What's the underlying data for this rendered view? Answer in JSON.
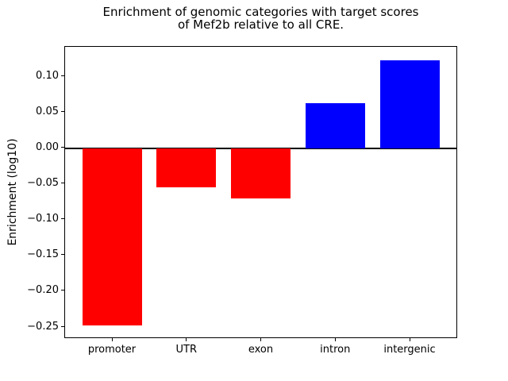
{
  "figure": {
    "background_color": "#ffffff",
    "text_color": "#000000"
  },
  "chart_data": {
    "type": "bar",
    "title": "Enrichment of genomic categories with target scores\nof Mef2b relative to all CRE.",
    "xlabel": "",
    "ylabel": "Enrichment (log10)",
    "categories": [
      "promoter",
      "UTR",
      "exon",
      "intron",
      "intergenic"
    ],
    "values": [
      -0.248,
      -0.055,
      -0.07,
      0.063,
      0.123
    ],
    "bar_colors": [
      "#ff0000",
      "#ff0000",
      "#ff0000",
      "#0000ff",
      "#0000ff"
    ],
    "negative_color": "#ff0000",
    "positive_color": "#0000ff",
    "ylim": [
      -0.2666,
      0.1416
    ],
    "yticks": [
      0.1,
      0.05,
      0.0,
      -0.05,
      -0.1,
      -0.15,
      -0.2,
      -0.25
    ],
    "ytick_labels": [
      "0.10",
      "0.05",
      "0.00",
      "−0.05",
      "−0.10",
      "−0.15",
      "−0.20",
      "−0.25"
    ],
    "zero_line": true,
    "grid": false,
    "legend": null
  }
}
